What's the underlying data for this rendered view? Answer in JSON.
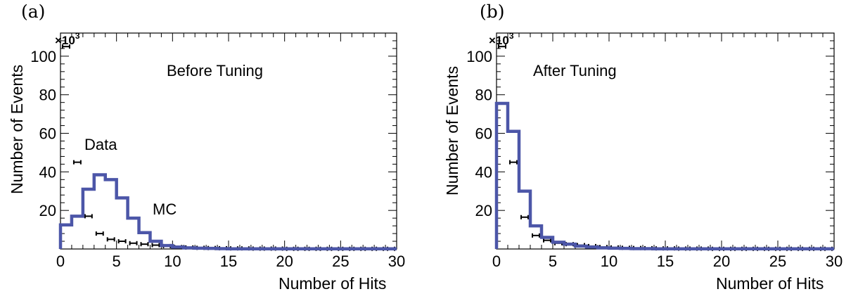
{
  "chart_data": [
    {
      "type": "line",
      "panel_label": "(a)",
      "annotation": "Before Tuning",
      "xlabel": "Number of Hits",
      "ylabel": "Number of Events",
      "y_multiplier": "×10",
      "y_multiplier_exp": "3",
      "xlim": [
        0,
        30
      ],
      "ylim": [
        0,
        112
      ],
      "xticks": [
        0,
        5,
        10,
        15,
        20,
        25,
        30
      ],
      "yticks": [
        20,
        40,
        60,
        80,
        100
      ],
      "grid": false,
      "series": [
        {
          "name": "Data",
          "style": "points-with-xerr",
          "color": "#000000",
          "x": [
            0.5,
            1.5,
            2.5,
            3.5,
            4.5,
            5.5,
            6.5,
            7.5,
            8.5,
            9.5,
            10.5,
            11.5,
            12.5,
            13.5,
            14.5,
            15.5,
            16.5,
            17.5,
            18.5,
            19.5,
            20.5,
            21.5,
            22.5,
            23.5,
            24.5,
            25.5,
            26.5,
            27.5,
            28.5,
            29.5
          ],
          "y": [
            105,
            45,
            17,
            8,
            5,
            4,
            3,
            2.5,
            2,
            1.5,
            1,
            0.8,
            0.6,
            0.5,
            0.4,
            0.3,
            0.3,
            0.2,
            0.2,
            0.2,
            0.1,
            0.1,
            0.1,
            0.1,
            0.1,
            0.1,
            0.1,
            0.1,
            0.1,
            0.1
          ]
        },
        {
          "name": "MC",
          "style": "step",
          "color": "#4c56a8",
          "bin_edges": [
            0,
            1,
            2,
            3,
            4,
            5,
            6,
            7,
            8,
            9,
            10,
            11,
            12,
            13,
            14,
            15,
            16,
            17,
            18,
            19,
            20,
            21,
            22,
            23,
            24,
            25,
            26,
            27,
            28,
            29,
            30
          ],
          "values": [
            12.5,
            17,
            31,
            38.5,
            36,
            26.5,
            16,
            8.5,
            4,
            1.8,
            1,
            0.6,
            0.4,
            0.3,
            0.2,
            0.1,
            0.1,
            0.1,
            0.1,
            0.1,
            0.1,
            0.1,
            0.1,
            0.1,
            0.1,
            0.1,
            0.1,
            0.1,
            0.1,
            0.1
          ]
        }
      ]
    },
    {
      "type": "line",
      "panel_label": "(b)",
      "annotation": "After Tuning",
      "xlabel": "Number of Hits",
      "ylabel": "Number of Events",
      "y_multiplier": "×10",
      "y_multiplier_exp": "3",
      "xlim": [
        0,
        30
      ],
      "ylim": [
        0,
        112
      ],
      "xticks": [
        0,
        5,
        10,
        15,
        20,
        25,
        30
      ],
      "yticks": [
        20,
        40,
        60,
        80,
        100
      ],
      "grid": false,
      "series": [
        {
          "name": "",
          "style": "points-with-xerr",
          "color": "#000000",
          "x": [
            0.5,
            1.5,
            2.5,
            3.5,
            4.5,
            5.5,
            6.5,
            7.5,
            8.5,
            9.5,
            10.5,
            11.5,
            12.5,
            13.5,
            14.5,
            15.5,
            16.5,
            17.5,
            18.5,
            19.5,
            20.5,
            21.5,
            22.5,
            23.5,
            24.5,
            25.5,
            26.5,
            27.5,
            28.5,
            29.5
          ],
          "y": [
            105,
            45,
            16.5,
            7,
            4.5,
            3,
            2.5,
            2,
            1.5,
            1,
            0.8,
            0.6,
            0.5,
            0.4,
            0.3,
            0.3,
            0.2,
            0.2,
            0.2,
            0.1,
            0.1,
            0.1,
            0.1,
            0.1,
            0.1,
            0.1,
            0.1,
            0.1,
            0.1,
            0.1
          ]
        },
        {
          "name": "",
          "style": "step",
          "color": "#4c56a8",
          "bin_edges": [
            0,
            1,
            2,
            3,
            4,
            5,
            6,
            7,
            8,
            9,
            10,
            11,
            12,
            13,
            14,
            15,
            16,
            17,
            18,
            19,
            20,
            21,
            22,
            23,
            24,
            25,
            26,
            27,
            28,
            29,
            30
          ],
          "values": [
            75.5,
            61,
            30,
            12,
            6,
            3.5,
            2.5,
            1.5,
            1,
            0.6,
            0.4,
            0.3,
            0.2,
            0.2,
            0.1,
            0.1,
            0.1,
            0.1,
            0.1,
            0.1,
            0.1,
            0.1,
            0.1,
            0.1,
            0.1,
            0.1,
            0.1,
            0.1,
            0.1,
            0.1
          ]
        }
      ]
    }
  ],
  "legend_labels": {
    "data": "Data",
    "mc": "MC"
  }
}
